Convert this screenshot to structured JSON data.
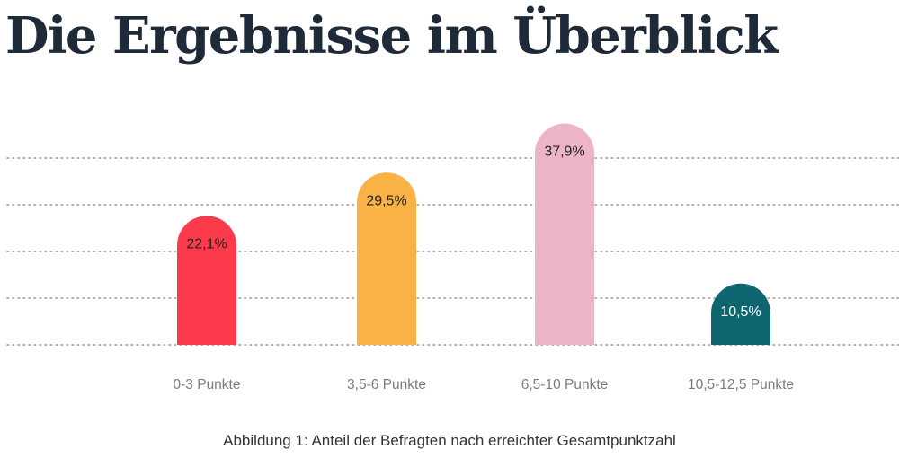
{
  "title": "Die Ergebnisse im Überblick",
  "caption": "Abbildung 1: Anteil der Befragten nach erreichter Gesamtpunktzahl",
  "chart_data": {
    "type": "bar",
    "title": "Die Ergebnisse im Überblick",
    "categories": [
      "0-3 Punkte",
      "3,5-6 Punkte",
      "6,5-10 Punkte",
      "10,5-12,5 Punkte"
    ],
    "values": [
      22.1,
      29.5,
      37.9,
      10.5
    ],
    "value_labels": [
      "22,1%",
      "29,5%",
      "37,9%",
      "10,5%"
    ],
    "colors": [
      "#fb3a4c",
      "#f8b245",
      "#ebb5c6",
      "#0f6670"
    ],
    "label_colors": [
      "#222222",
      "#222222",
      "#222222",
      "#ffffff"
    ],
    "unit": "%",
    "ylim": [
      0,
      40
    ],
    "grid": true,
    "grid_style": "dotted",
    "xlabel": "",
    "ylabel": ""
  }
}
